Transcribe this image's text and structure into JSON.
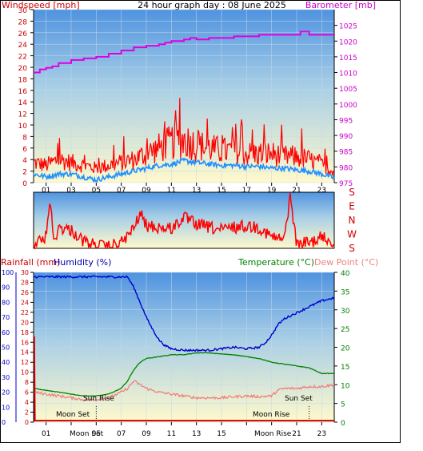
{
  "header": {
    "title": "24 hour graph day : 08 June 2025",
    "left_label": "Windspeed [mph]",
    "right_label": "Barometer [mb]"
  },
  "direction_panel": {
    "labels": [
      "S",
      "E",
      "N",
      "W",
      "S"
    ]
  },
  "lower_header": {
    "rainfall_label": "Rainfall (mm)",
    "humidity_label": "Humidity (%)",
    "temperature_label": "Temperature (°C)",
    "dewpoint_label": "Dew Point (°C)"
  },
  "annotations": {
    "moon_set": "Moon Set",
    "sun_rise": "Sun Rise",
    "sun_set": "Sun Set",
    "moon_rise": "Moon Rise",
    "moon_set_rise_axis": "Moon Set",
    "moon_rise_axis": "Moon Rise"
  },
  "colors": {
    "barometer": "#e000e0",
    "wind_gust": "#ff0000",
    "wind_avg": "#1e90ff",
    "humidity": "#0000cc",
    "temperature": "#008000",
    "dew_point": "#f08080",
    "rainfall": "#cc0000",
    "sky_top": "#4a90e2",
    "sky_bottom": "#fffbd0"
  },
  "chart_data": [
    {
      "type": "line",
      "x_ticks": [
        "01",
        "03",
        "05",
        "07",
        "09",
        "11",
        "13",
        "15",
        "17",
        "19",
        "21",
        "23"
      ],
      "xlim": [
        0,
        24
      ],
      "left_axis": {
        "label": "Windspeed [mph]",
        "ylim": [
          0,
          30
        ],
        "ticks": [
          0,
          2,
          4,
          6,
          8,
          10,
          12,
          14,
          16,
          18,
          20,
          22,
          24,
          26,
          28,
          30
        ]
      },
      "right_axis": {
        "label": "Barometer [mb]",
        "ylim": [
          975,
          1030
        ],
        "ticks": [
          975,
          980,
          985,
          990,
          995,
          1000,
          1005,
          1010,
          1015,
          1020,
          1025
        ]
      },
      "series": [
        {
          "name": "Barometer [mb]",
          "x": [
            0,
            0.5,
            1,
            1.5,
            2,
            2.5,
            3,
            4,
            5,
            6,
            7,
            8,
            9,
            10,
            10.5,
            11,
            11.5,
            12,
            12.5,
            13,
            14,
            15,
            16,
            17,
            18,
            19,
            20,
            21,
            21.3,
            22,
            23,
            24
          ],
          "values": [
            1010,
            1011,
            1011.5,
            1012,
            1013,
            1013,
            1014,
            1014.5,
            1015,
            1016,
            1017,
            1018,
            1018.5,
            1019,
            1019.5,
            1020,
            1020,
            1020.5,
            1021,
            1020.5,
            1021,
            1021,
            1021.5,
            1021.5,
            1022,
            1022,
            1022,
            1022,
            1023,
            1022,
            1022,
            1022
          ]
        },
        {
          "name": "Wind gust",
          "x": [
            0,
            1,
            2,
            3,
            4,
            5,
            6,
            7,
            8,
            9,
            10,
            11,
            12,
            13,
            14,
            15,
            16,
            17,
            18,
            19,
            20,
            21,
            22,
            23,
            24
          ],
          "values": [
            3.5,
            3,
            4,
            3.5,
            3,
            2.5,
            3,
            3.5,
            4,
            5,
            6,
            7,
            7.5,
            6.5,
            6,
            5.5,
            5.5,
            5,
            5,
            5,
            4.5,
            4.5,
            4,
            3,
            2
          ]
        },
        {
          "name": "Wind average",
          "x": [
            0,
            1,
            2,
            3,
            4,
            5,
            6,
            7,
            8,
            9,
            10,
            11,
            12,
            13,
            14,
            15,
            16,
            17,
            18,
            19,
            20,
            21,
            22,
            23,
            24
          ],
          "values": [
            1.5,
            1,
            1.5,
            1.5,
            1,
            0.5,
            1,
            1.5,
            2,
            2.5,
            3,
            3.2,
            3.8,
            3.5,
            3.2,
            3,
            3,
            2.8,
            2.8,
            2.5,
            2.5,
            2.2,
            2,
            1.5,
            0.8
          ]
        }
      ]
    },
    {
      "type": "line",
      "xlim": [
        0,
        24
      ],
      "y_labels": [
        "S",
        "E",
        "N",
        "W",
        "S"
      ],
      "series": [
        {
          "name": "Wind direction",
          "x": [
            0,
            1,
            1.3,
            1.6,
            2,
            3,
            4,
            5,
            6,
            7,
            8,
            8.5,
            9,
            10,
            11,
            12,
            13,
            14,
            15,
            16,
            17,
            18,
            19,
            20,
            20.5,
            21,
            21.5,
            22,
            23,
            24
          ],
          "values": [
            3.7,
            3.2,
            0.3,
            3.6,
            2.5,
            2.7,
            3.5,
            3.8,
            3.9,
            3.6,
            2.6,
            1.5,
            2.4,
            2.5,
            2.6,
            1.8,
            2.3,
            2.5,
            2.7,
            2.5,
            2.4,
            2.5,
            3.2,
            3.4,
            0.2,
            3.8,
            3.6,
            3.6,
            3.2,
            3.6
          ]
        }
      ]
    },
    {
      "type": "line",
      "xlim": [
        0,
        24
      ],
      "x_ticks": [
        "01",
        "03",
        "05",
        "07",
        "09",
        "11",
        "13",
        "15",
        "17",
        "19",
        "21",
        "23"
      ],
      "humidity_axis": {
        "label": "Humidity (%)",
        "ylim": [
          0,
          100
        ],
        "ticks": [
          0,
          10,
          20,
          30,
          40,
          50,
          60,
          70,
          80,
          90,
          100
        ]
      },
      "rainfall_axis": {
        "label": "Rainfall (mm)",
        "ylim": [
          0,
          30
        ],
        "ticks": [
          0,
          2,
          4,
          6,
          8,
          10,
          12,
          14,
          16,
          18,
          20,
          22,
          24,
          26,
          28,
          30
        ]
      },
      "temperature_axis": {
        "label": "Temperature (°C)",
        "ylim": [
          0,
          40
        ],
        "ticks": [
          0,
          5,
          10,
          15,
          20,
          25,
          30,
          35,
          40
        ]
      },
      "series": [
        {
          "name": "Humidity (%)",
          "x": [
            0,
            1,
            2,
            3,
            4,
            5,
            6,
            7,
            7.5,
            8,
            8.5,
            9,
            9.5,
            10,
            10.5,
            11,
            12,
            13,
            14,
            15,
            16,
            17,
            18,
            18.5,
            19,
            19.5,
            20,
            21,
            22,
            23,
            24
          ],
          "values": [
            97,
            97,
            97,
            97,
            97,
            97,
            97,
            97,
            97,
            90,
            80,
            70,
            62,
            55,
            51,
            49,
            48,
            48,
            48,
            49,
            50,
            49,
            50,
            53,
            58,
            65,
            69,
            73,
            77,
            81,
            83
          ]
        },
        {
          "name": "Temperature (°C)",
          "x": [
            0,
            1,
            2,
            3,
            4,
            5,
            6,
            7,
            7.5,
            8,
            8.5,
            9,
            10,
            11,
            12,
            13,
            14,
            15,
            16,
            17,
            18,
            19,
            20,
            21,
            22,
            23,
            24
          ],
          "values": [
            9,
            8.5,
            8,
            7.5,
            7,
            7,
            7.5,
            9,
            11,
            14,
            16,
            17,
            17.5,
            18,
            18,
            18.5,
            18.5,
            18.2,
            18,
            17.5,
            17,
            16,
            15.5,
            15,
            14.5,
            13,
            13
          ]
        },
        {
          "name": "Dew Point (°C)",
          "x": [
            0,
            1,
            2,
            3,
            4,
            5,
            6,
            7,
            7.5,
            8,
            8.5,
            9,
            10,
            11,
            12,
            13,
            14,
            15,
            16,
            17,
            18,
            19,
            19.5,
            20,
            21,
            22,
            23,
            24
          ],
          "values": [
            8,
            7.5,
            7,
            6.5,
            6,
            6,
            6.5,
            8,
            9,
            11,
            10,
            9,
            8,
            7.5,
            7,
            6.5,
            6.5,
            6.5,
            6.8,
            7,
            6.8,
            7,
            8.5,
            9,
            9,
            9.5,
            9.5,
            10
          ]
        },
        {
          "name": "Rainfall (mm)",
          "x": [
            0,
            0.05,
            0.1,
            24
          ],
          "values": [
            17,
            17,
            0.3,
            0.3
          ]
        }
      ]
    }
  ]
}
